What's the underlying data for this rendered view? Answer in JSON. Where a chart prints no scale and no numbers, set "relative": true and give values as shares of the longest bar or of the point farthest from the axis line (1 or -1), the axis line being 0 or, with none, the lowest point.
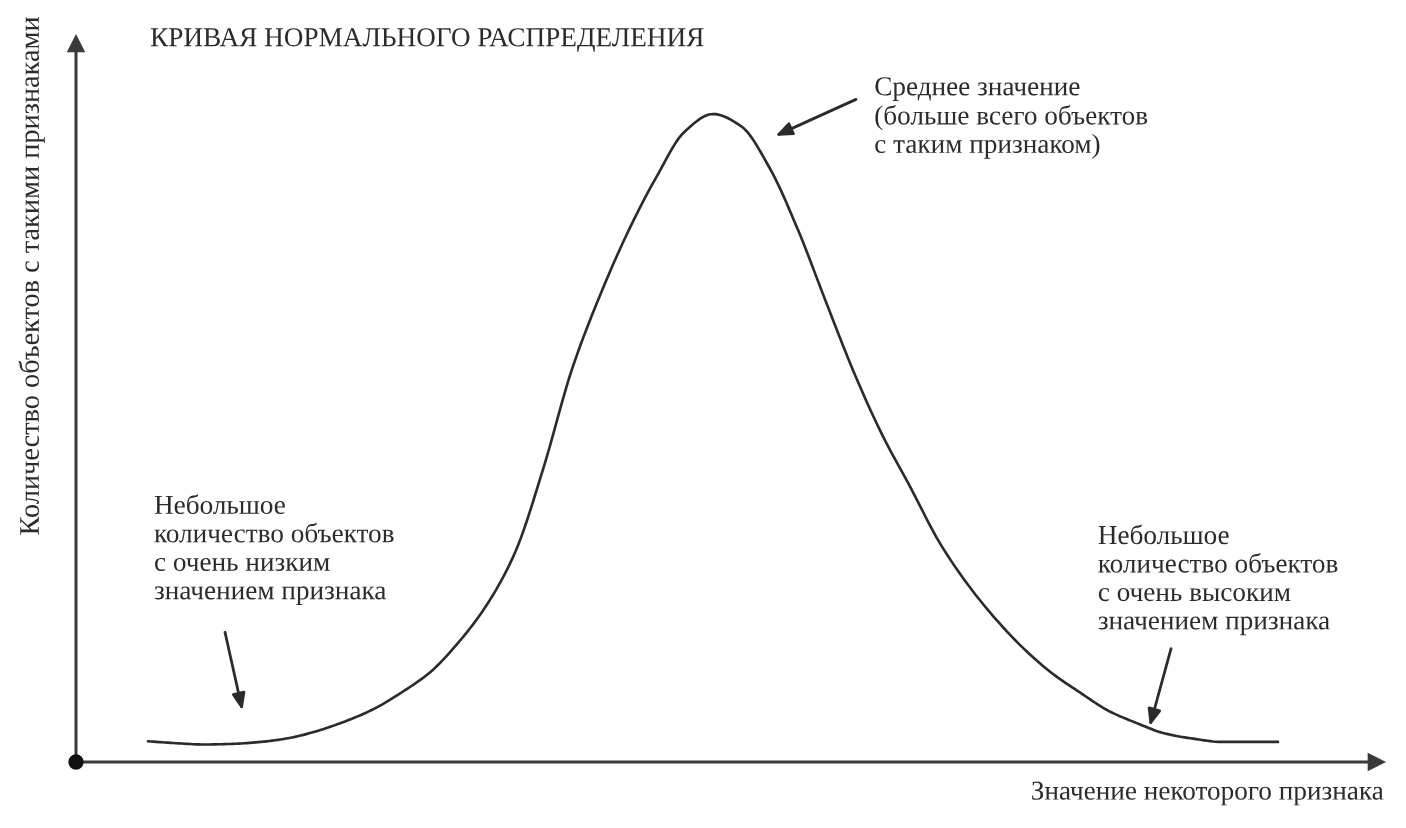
{
  "chart_data": {
    "type": "line",
    "relative": true,
    "title": "КРИВАЯ НОРМАЛЬНОГО РАСПРЕДЕЛЕНИЯ",
    "xlabel": "Значение некоторого признака",
    "ylabel": "Количество объектов с такими признаками",
    "categories": [
      null,
      null,
      null,
      null,
      null,
      null,
      null,
      null,
      null,
      null,
      null,
      null,
      null,
      null,
      null,
      null,
      null,
      null,
      null,
      null,
      null,
      null,
      null,
      null,
      null,
      null,
      null,
      null,
      null,
      null,
      null,
      null,
      null,
      null,
      null,
      null,
      null,
      null,
      null,
      null,
      null
    ],
    "series": [
      {
        "color": "#2b2b2b",
        "values": [
          0.032,
          0.029,
          0.027,
          0.028,
          0.031,
          0.037,
          0.048,
          0.063,
          0.082,
          0.108,
          0.139,
          0.185,
          0.243,
          0.324,
          0.454,
          0.605,
          0.72,
          0.819,
          0.903,
          0.973,
          1.0,
          0.981,
          0.917,
          0.822,
          0.71,
          0.6,
          0.504,
          0.423,
          0.34,
          0.275,
          0.221,
          0.175,
          0.137,
          0.107,
          0.079,
          0.06,
          0.044,
          0.036,
          0.031,
          0.031,
          0.031
        ]
      }
    ],
    "annotations": [
      "Среднее значение\n(больше всего объектов\nс таким признаком)",
      "Небольшое\nколичество объектов\nс очень низким\nзначением признака",
      "Небольшое\nколичество объектов\nс очень высоким\nзначением признака"
    ]
  }
}
